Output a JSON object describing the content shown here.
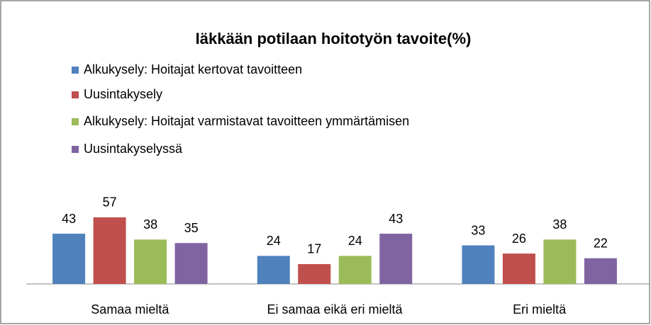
{
  "chart_data": {
    "type": "bar",
    "title": "Iäkkään potilaan hoitotyön tavoite(%)",
    "categories": [
      "Samaa mieltä",
      "Ei samaa eikä eri mieltä",
      "Eri mieltä"
    ],
    "series": [
      {
        "name": "Alkukysely: Hoitajat kertovat tavoitteen",
        "color": "#4f81bd",
        "values": [
          43,
          24,
          33
        ]
      },
      {
        "name": "Uusintakysely",
        "color": "#c0504d",
        "values": [
          57,
          17,
          26
        ]
      },
      {
        "name": "Alkukysely: Hoitajat varmistavat tavoitteen ymmärtämisen",
        "color": "#9bbb59",
        "values": [
          38,
          24,
          38
        ]
      },
      {
        "name": "Uusintakyselyssä",
        "color": "#8064a2",
        "values": [
          35,
          43,
          22
        ]
      }
    ],
    "ylim": [
      0,
      60
    ],
    "legend": "top-left"
  }
}
